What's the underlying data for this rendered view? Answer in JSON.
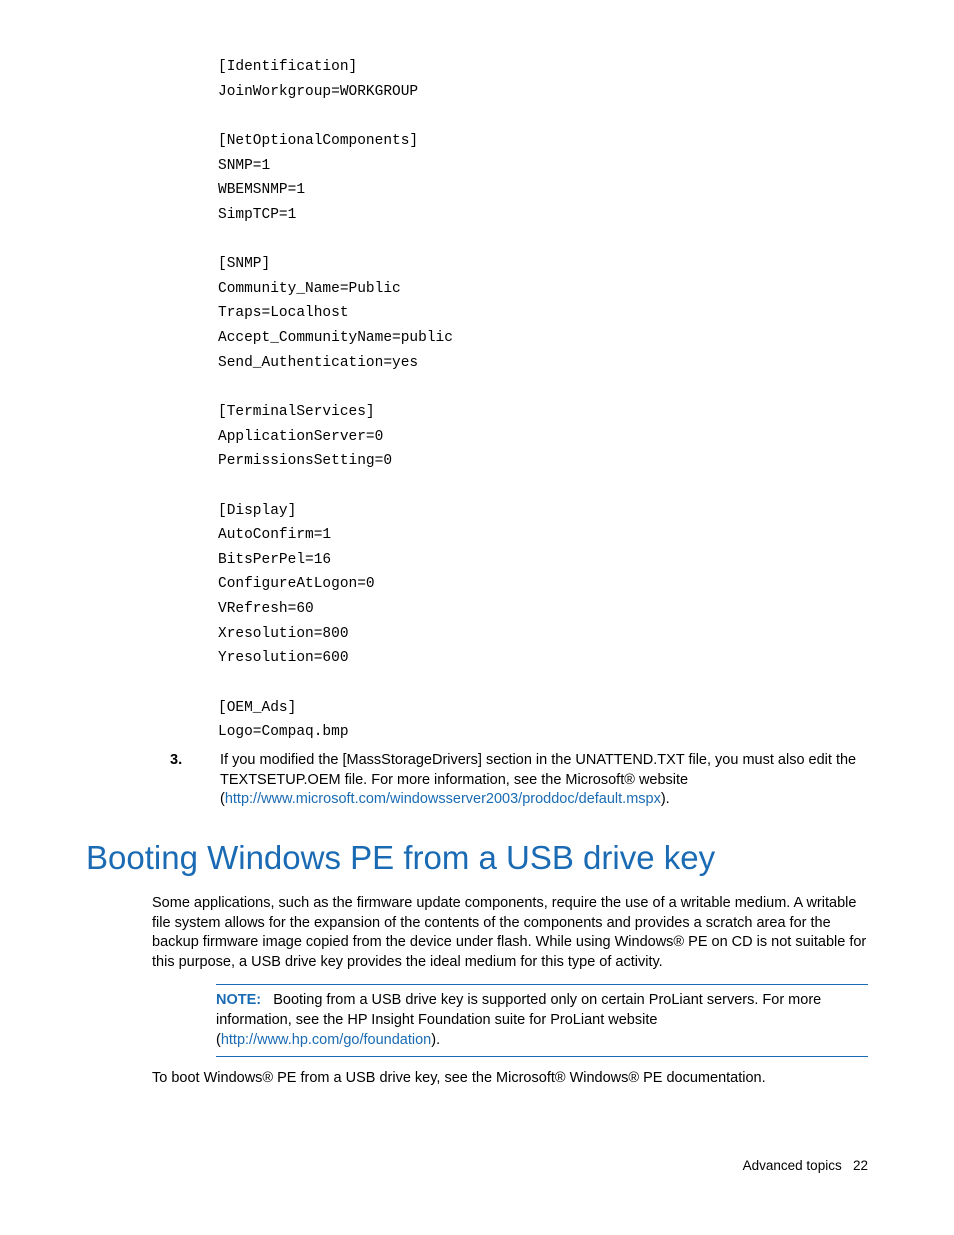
{
  "code": "[Identification]\nJoinWorkgroup=WORKGROUP\n\n[NetOptionalComponents]\nSNMP=1\nWBEMSNMP=1\nSimpTCP=1\n\n[SNMP]\nCommunity_Name=Public\nTraps=Localhost\nAccept_CommunityName=public\nSend_Authentication=yes\n\n[TerminalServices]\nApplicationServer=0\nPermissionsSetting=0\n\n[Display]\nAutoConfirm=1\nBitsPerPel=16\nConfigureAtLogon=0\nVRefresh=60\nXresolution=800\nYresolution=600\n\n[OEM_Ads]\nLogo=Compaq.bmp",
  "step3": {
    "marker": "3.",
    "pre": "If you modified the [MassStorageDrivers] section in the UNATTEND.TXT file, you must also edit the TEXTSETUP.OEM file. For more information, see the Microsoft® website (",
    "link": "http://www.microsoft.com/windowsserver2003/proddoc/default.mspx",
    "post": ")."
  },
  "heading": "Booting Windows PE from a USB drive key",
  "para1": "Some applications, such as the firmware update components, require the use of a writable medium. A writable file system allows for the expansion of the contents of the components and provides a scratch area for the backup firmware image copied from the device under flash. While using Windows® PE on CD is not suitable for this purpose, a USB drive key provides the ideal medium for this type of activity.",
  "note": {
    "label": "NOTE:",
    "pre": "Booting from a USB drive key is supported only on certain ProLiant servers. For more information, see the HP Insight Foundation suite for ProLiant website (",
    "link": "http://www.hp.com/go/foundation",
    "post": ")."
  },
  "para2": "To boot Windows® PE from a USB drive key, see the Microsoft® Windows® PE documentation.",
  "footer": {
    "section": "Advanced topics",
    "page": "22"
  },
  "colors": {
    "link": "#1a6bb4",
    "text": "#000000",
    "bg": "#ffffff"
  }
}
